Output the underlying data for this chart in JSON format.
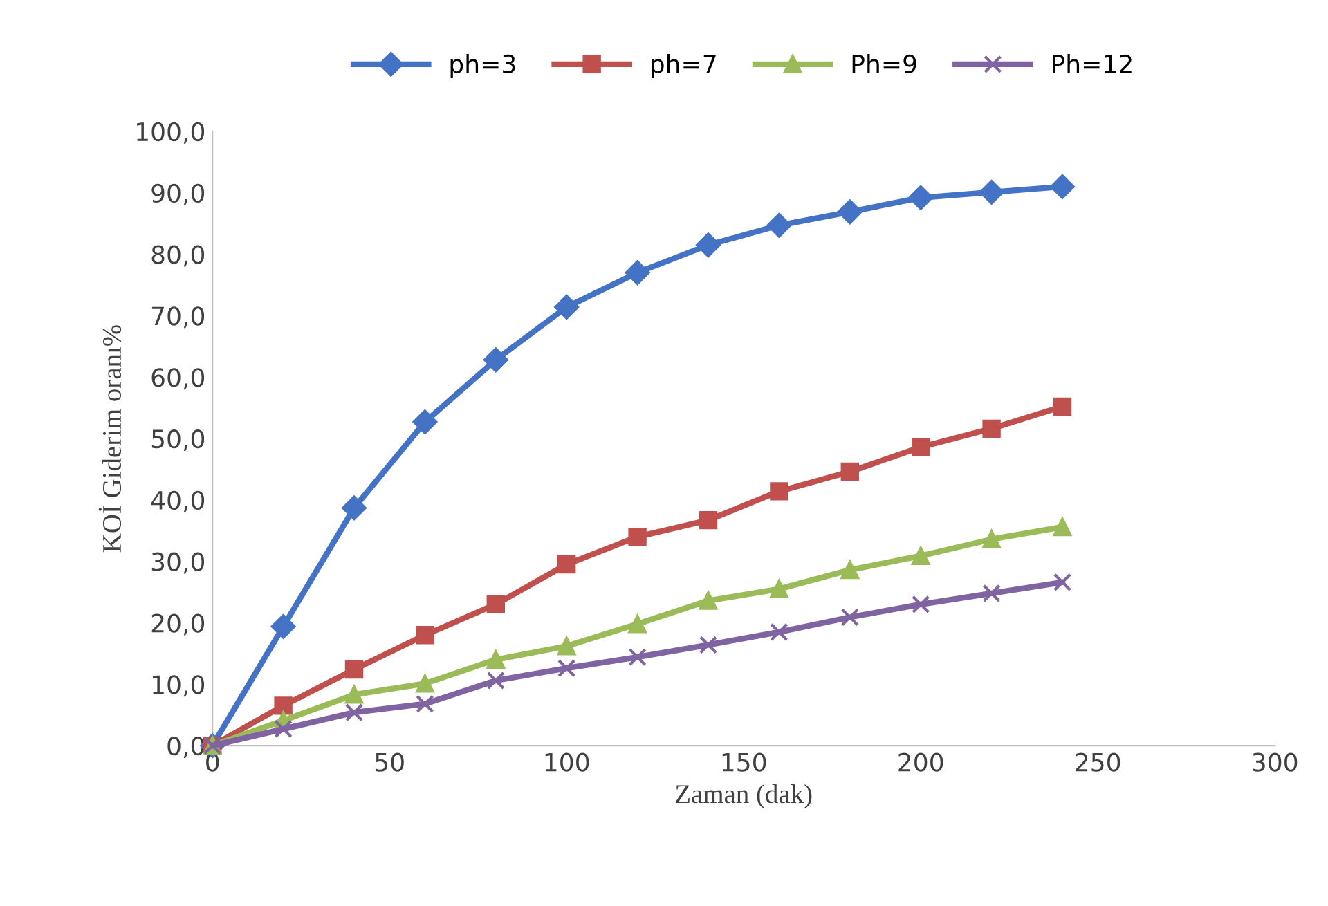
{
  "chart_data": {
    "type": "line",
    "xlabel": "Zaman (dak)",
    "ylabel": "KOİ Giderim oranı%",
    "x": [
      0,
      20,
      40,
      60,
      80,
      100,
      120,
      140,
      160,
      180,
      200,
      220,
      240
    ],
    "series": [
      {
        "name": "ph=3",
        "color": "#4472c4",
        "marker": "diamond",
        "values": [
          0,
          19.4,
          38.7,
          52.7,
          62.8,
          71.4,
          77.0,
          81.5,
          84.7,
          86.9,
          89.2,
          90.1,
          91.0
        ]
      },
      {
        "name": "ph=7",
        "color": "#c0504d",
        "marker": "square",
        "values": [
          0,
          6.5,
          12.4,
          18.0,
          23.0,
          29.5,
          34.0,
          36.7,
          41.4,
          44.6,
          48.6,
          51.6,
          55.2
        ]
      },
      {
        "name": "Ph=9",
        "color": "#9bbb59",
        "marker": "triangle",
        "values": [
          0,
          4.1,
          8.3,
          10.1,
          14.0,
          16.2,
          19.8,
          23.6,
          25.5,
          28.6,
          30.9,
          33.6,
          35.6
        ]
      },
      {
        "name": "Ph=12",
        "color": "#8064a2",
        "marker": "cross",
        "values": [
          0,
          2.7,
          5.4,
          6.8,
          10.6,
          12.6,
          14.4,
          16.4,
          18.5,
          20.9,
          23.0,
          24.8,
          26.6
        ]
      }
    ],
    "xlim": [
      0,
      300
    ],
    "xticks": [
      0,
      50,
      100,
      150,
      200,
      250,
      300
    ],
    "ylim": [
      0,
      100
    ],
    "yticks": [
      {
        "value": 0,
        "label": "0,0"
      },
      {
        "value": 10,
        "label": "10,0"
      },
      {
        "value": 20,
        "label": "20,0"
      },
      {
        "value": 30,
        "label": "30,0"
      },
      {
        "value": 40,
        "label": "40,0"
      },
      {
        "value": 50,
        "label": "50,0"
      },
      {
        "value": 60,
        "label": "60,0"
      },
      {
        "value": 70,
        "label": "70,0"
      },
      {
        "value": 80,
        "label": "80,0"
      },
      {
        "value": 90,
        "label": "90,0"
      },
      {
        "value": 100,
        "label": "100,0"
      }
    ],
    "grid": false,
    "legend": "top",
    "line_style": "solid"
  }
}
